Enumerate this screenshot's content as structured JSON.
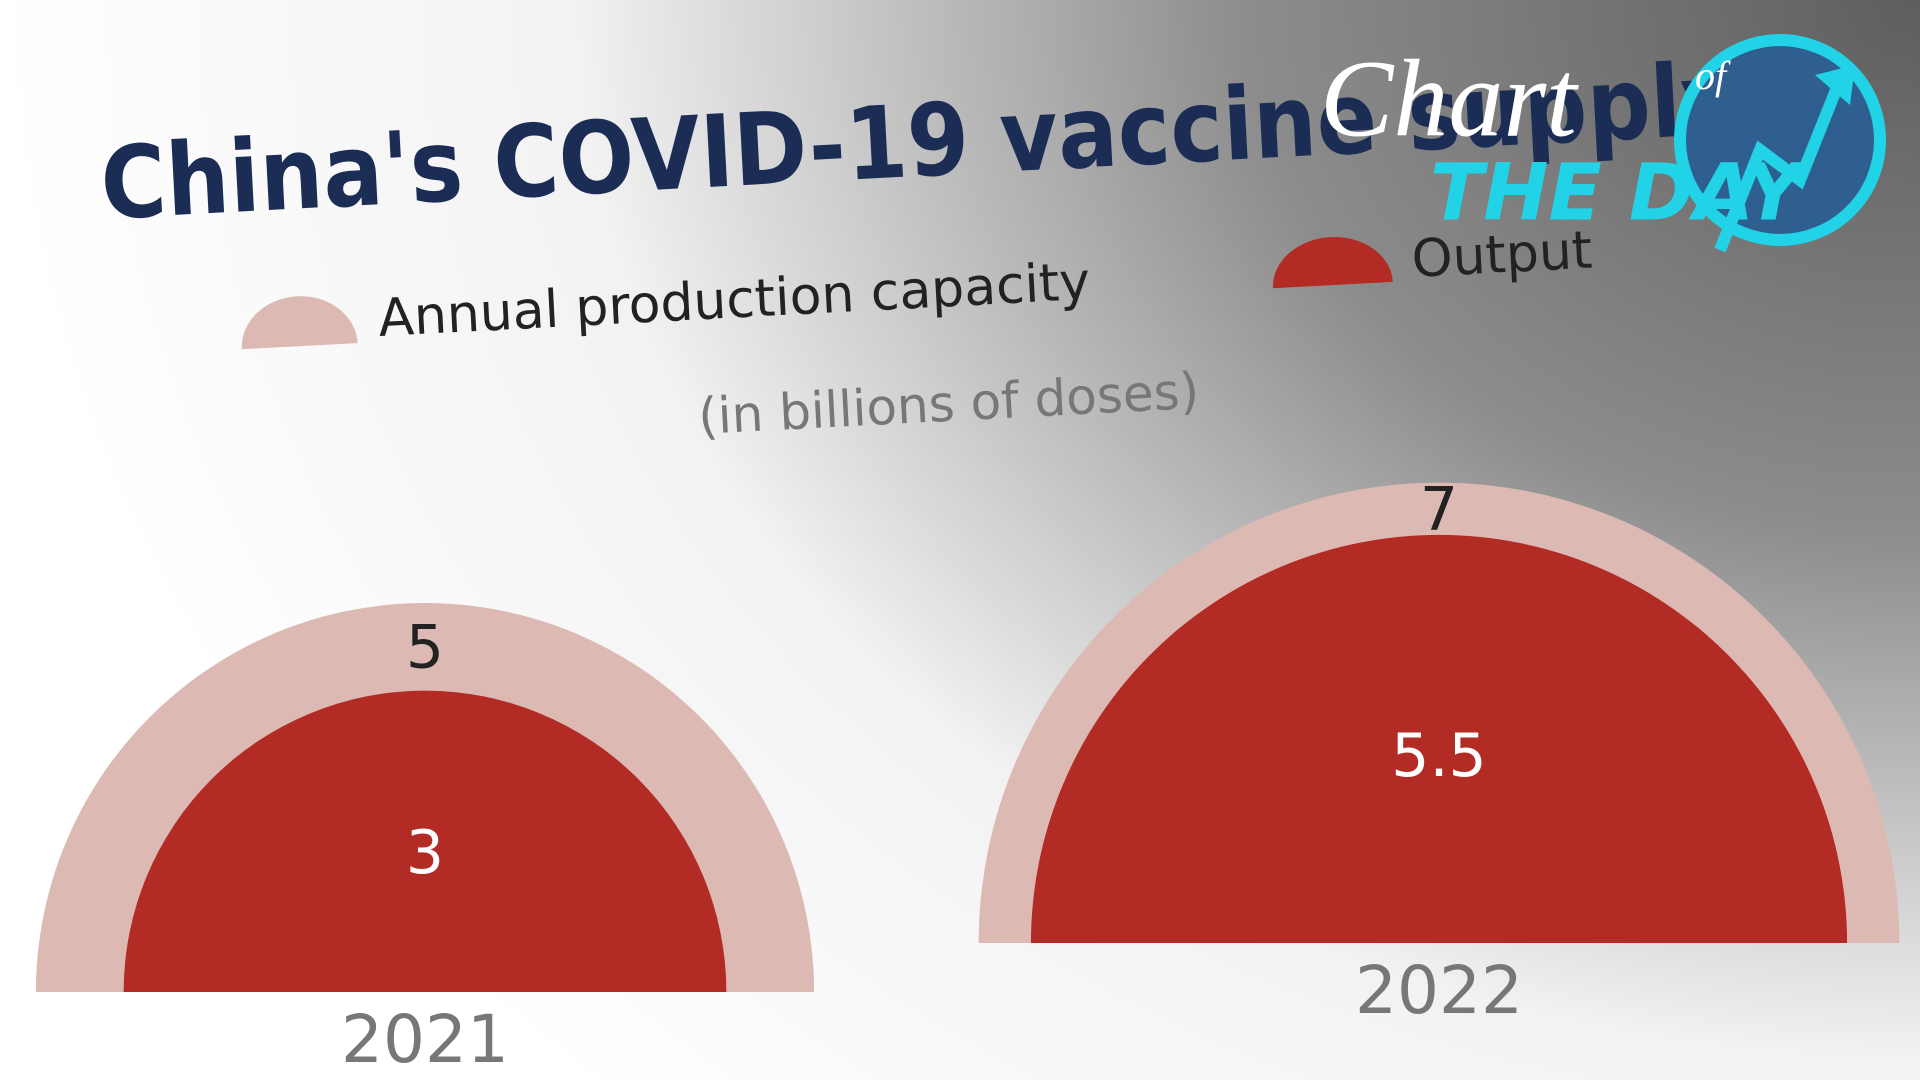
{
  "chart_data": {
    "type": "semicircle",
    "title": "China's COVID-19 vaccine supply",
    "subtitle": "(in billions of doses)",
    "categories": [
      "2021",
      "2022"
    ],
    "series": [
      {
        "name": "Annual production capacity",
        "color": "#ddb9b4",
        "values": [
          5,
          7
        ]
      },
      {
        "name": "Output",
        "color": "#b22b24",
        "values": [
          3,
          5.5
        ]
      }
    ]
  },
  "logo": {
    "word": "Chart",
    "of": "of",
    "tagline": "THE DAY"
  }
}
